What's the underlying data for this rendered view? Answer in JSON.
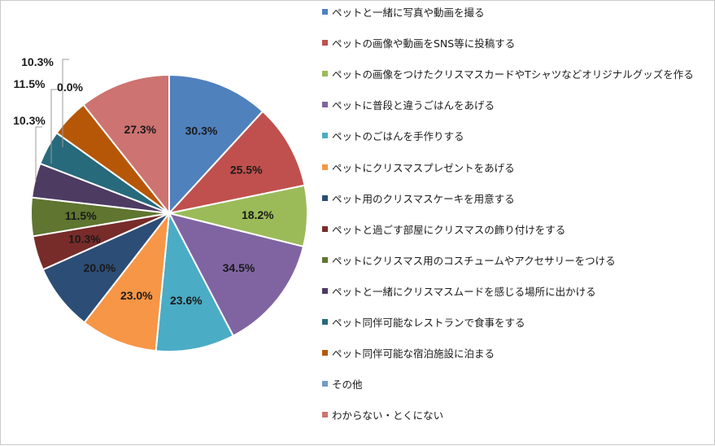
{
  "chart_data": {
    "type": "pie",
    "categories": [
      "ペットと一緒に写真や動画を撮る",
      "ペットの画像や動画をSNS等に投稿する",
      "ペットの画像をつけたクリスマスカードやTシャツなどオリジナルグッズを作る",
      "ペットに普段と違うごはんをあげる",
      "ペットのごはんを手作りする",
      "ペットにクリスマスプレゼントをあげる",
      "ペット用のクリスマスケーキを用意する",
      "ペットと過ごす部屋にクリスマスの飾り付けをする",
      "ペットにクリスマス用のコスチュームやアクセサリーをつける",
      "ペットと一緒にクリスマスムードを感じる場所に出かける",
      "ペット同伴可能なレストランで食事をする",
      "ペット同伴可能な宿泊施設に泊まる",
      "その他",
      "わからない・とくにない"
    ],
    "values": [
      30.3,
      25.5,
      18.2,
      34.5,
      23.6,
      23.0,
      20.0,
      10.3,
      11.5,
      10.3,
      10.3,
      11.5,
      0.0,
      27.3
    ],
    "labels": [
      "30.3%",
      "25.5%",
      "18.2%",
      "34.5%",
      "23.6%",
      "23.0%",
      "20.0%",
      "10.3%",
      "11.5%",
      "10.3%",
      "10.3%",
      "11.5%",
      "0.0%",
      "27.3%"
    ],
    "colors": [
      "#4f81bd",
      "#c0504d",
      "#9bbb59",
      "#8064a2",
      "#4bacc6",
      "#f79646",
      "#2c4d75",
      "#772c2a",
      "#5f7530",
      "#4d3b62",
      "#276a7c",
      "#b65708",
      "#729aca",
      "#cd7371"
    ],
    "legend_position": "right"
  }
}
